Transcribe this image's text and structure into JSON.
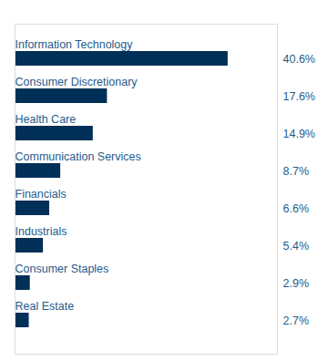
{
  "chart_data": {
    "type": "bar",
    "orientation": "horizontal",
    "categories": [
      "Real Estate",
      "Consumer Staples",
      "Industrials",
      "Financials",
      "Communication Services",
      "Health Care",
      "Consumer Discretionary",
      "Information Technology"
    ],
    "values": [
      2.7,
      2.9,
      5.4,
      6.6,
      8.7,
      14.9,
      17.6,
      40.6
    ],
    "value_labels": [
      "2.7%",
      "2.9%",
      "5.4%",
      "6.6%",
      "8.7%",
      "14.9%",
      "17.6%",
      "40.6%"
    ],
    "color": "#003057",
    "xlim": [
      0,
      50
    ],
    "data_labels": true,
    "tick_labels": false,
    "grid": false
  }
}
